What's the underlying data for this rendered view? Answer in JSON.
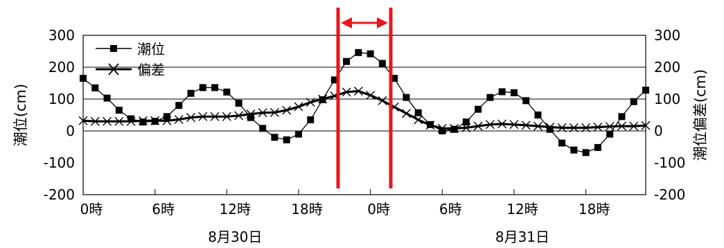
{
  "chart_data": {
    "type": "line",
    "title": "",
    "ylabel_left": "潮位(cm)",
    "ylabel_right": "潮位偏差(cm)",
    "ylim": [
      -200,
      300
    ],
    "yticks": [
      -200,
      -100,
      0,
      100,
      200,
      300
    ],
    "gridlines": [
      0,
      100,
      200
    ],
    "grid": true,
    "legend_position": "top-left",
    "xlim": [
      0,
      47
    ],
    "xtick_positions": [
      0,
      6,
      12,
      18,
      24,
      30,
      36,
      42
    ],
    "xtick_labels": [
      "0時",
      "6時",
      "12時",
      "18時",
      "0時",
      "6時",
      "12時",
      "18時"
    ],
    "date_labels": [
      {
        "at": 12,
        "text": "8月30日"
      },
      {
        "at": 36,
        "text": "8月31日"
      }
    ],
    "highlight": {
      "x_start": 21.3,
      "x_end": 25.7,
      "color": "#e8161c"
    },
    "series": [
      {
        "name": "潮位",
        "marker": "square",
        "color": "#000000",
        "x": [
          0,
          1,
          2,
          3,
          4,
          5,
          6,
          7,
          8,
          9,
          10,
          11,
          12,
          13,
          14,
          15,
          16,
          17,
          18,
          19,
          20,
          21,
          22,
          23,
          24,
          25,
          26,
          27,
          28,
          29,
          30,
          31,
          32,
          33,
          34,
          35,
          36,
          37,
          38,
          39,
          40,
          41,
          42,
          43,
          44,
          45,
          46,
          47
        ],
        "values": [
          165,
          135,
          103,
          65,
          38,
          28,
          30,
          45,
          80,
          118,
          136,
          136,
          122,
          87,
          42,
          8,
          -20,
          -28,
          -10,
          35,
          98,
          160,
          218,
          246,
          242,
          212,
          165,
          105,
          57,
          20,
          0,
          5,
          28,
          68,
          105,
          123,
          120,
          95,
          50,
          5,
          -38,
          -60,
          -68,
          -52,
          -10,
          45,
          92,
          128
        ]
      },
      {
        "name": "偏差",
        "marker": "cross",
        "color": "#000000",
        "x": [
          0,
          1,
          2,
          3,
          4,
          5,
          6,
          7,
          8,
          9,
          10,
          11,
          12,
          13,
          14,
          15,
          16,
          17,
          18,
          19,
          20,
          21,
          22,
          23,
          24,
          25,
          26,
          27,
          28,
          29,
          30,
          31,
          32,
          33,
          34,
          35,
          36,
          37,
          38,
          39,
          40,
          41,
          42,
          43,
          44,
          45,
          46,
          47
        ],
        "values": [
          32,
          30,
          30,
          30,
          30,
          32,
          32,
          32,
          36,
          42,
          45,
          45,
          45,
          48,
          53,
          57,
          58,
          65,
          76,
          90,
          100,
          110,
          122,
          125,
          112,
          95,
          75,
          55,
          35,
          18,
          8,
          8,
          10,
          15,
          20,
          22,
          20,
          18,
          15,
          12,
          10,
          10,
          10,
          12,
          14,
          15,
          15,
          17
        ]
      }
    ]
  }
}
